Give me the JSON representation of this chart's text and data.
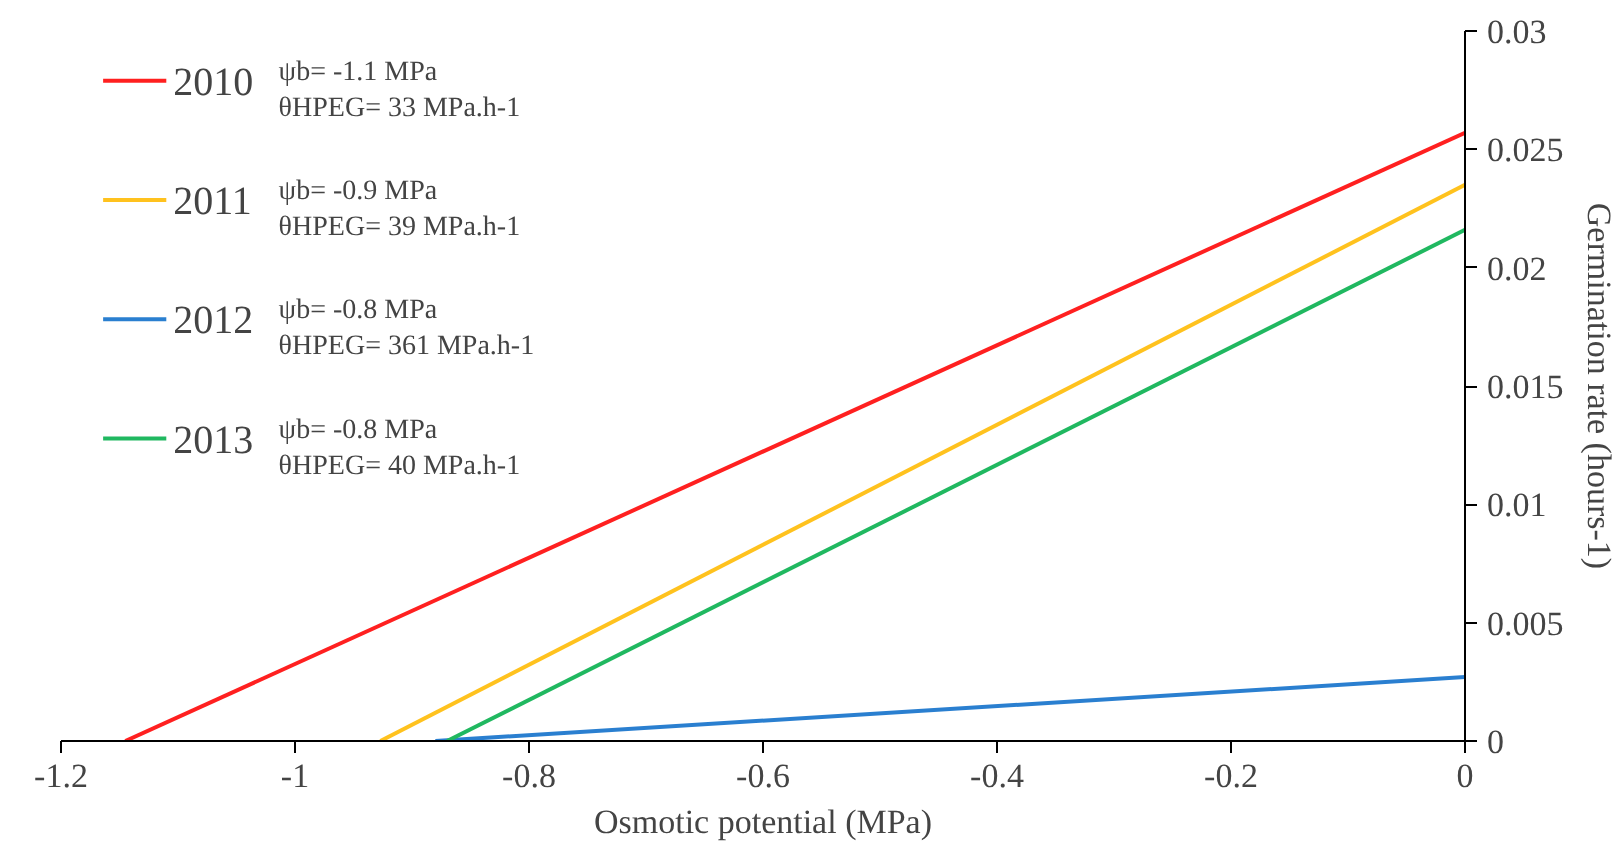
{
  "chart_data": {
    "type": "line",
    "xlabel": "Osmotic potential (MPa)",
    "ylabel": "Germination rate (hours-1)",
    "xlim": [
      -1.2,
      0
    ],
    "xticks": [
      -1.2,
      -1,
      -0.8,
      -0.6,
      -0.4,
      -0.2,
      0
    ],
    "ylim": [
      0,
      0.03
    ],
    "yticks": [
      0,
      0.005,
      0.01,
      0.015,
      0.02,
      0.025,
      0.03
    ],
    "grid": false,
    "legend": "top left",
    "marker": "none",
    "line_style": "solid",
    "series": [
      {
        "name": "2010",
        "color": "#ff2020",
        "x": [
          -1.145,
          0
        ],
        "values": [
          0,
          0.0257
        ]
      },
      {
        "name": "2011",
        "color": "#ffc21e",
        "x": [
          -0.927,
          0
        ],
        "values": [
          0,
          0.0235
        ]
      },
      {
        "name": "2012",
        "color": "#2a7fd0",
        "x": [
          -0.88,
          0
        ],
        "values": [
          0,
          0.0027
        ]
      },
      {
        "name": "2013",
        "color": "#20b860",
        "x": [
          -0.87,
          0
        ],
        "values": [
          0,
          0.0216
        ]
      }
    ],
    "annotations": [
      "ψb= -1.1 MPa",
      "θHPEG= 33 MPa.h-1",
      "ψb= -0.9 MPa",
      "θHPEG= 39 MPa.h-1",
      "ψb= -0.8 MPa",
      "θHPEG= 361 MPa.h-1",
      "ψb= -0.8 MPa",
      "θHPEG= 40 MPa.h-1"
    ]
  }
}
